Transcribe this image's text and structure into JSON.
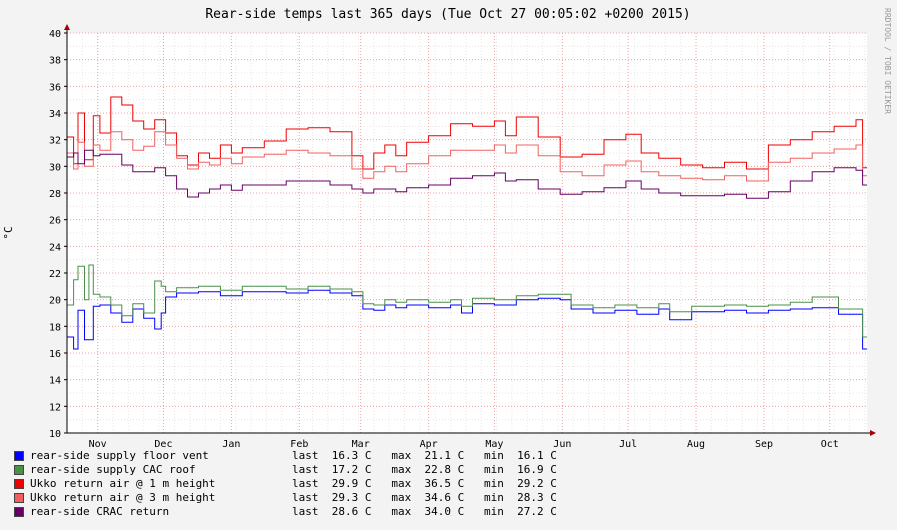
{
  "chart_data": {
    "type": "line",
    "title": "Rear-side temps last 365 days (Tue Oct 27 00:05:02 +0200 2015)",
    "ylabel": "°C",
    "watermark": "RRDTOOL / TOBI OETIKER",
    "ylim": [
      10,
      40
    ],
    "yticks": [
      "10",
      "12",
      "14",
      "16",
      "18",
      "20",
      "22",
      "24",
      "26",
      "28",
      "30",
      "32",
      "34",
      "36",
      "38",
      "40"
    ],
    "x_range_days": [
      0,
      365
    ],
    "xticks": [
      {
        "label": "Nov",
        "day": 14
      },
      {
        "label": "Dec",
        "day": 44
      },
      {
        "label": "Jan",
        "day": 75
      },
      {
        "label": "Feb",
        "day": 106
      },
      {
        "label": "Mar",
        "day": 134
      },
      {
        "label": "Apr",
        "day": 165
      },
      {
        "label": "May",
        "day": 195
      },
      {
        "label": "Jun",
        "day": 226
      },
      {
        "label": "Jul",
        "day": 256
      },
      {
        "label": "Aug",
        "day": 287
      },
      {
        "label": "Sep",
        "day": 318
      },
      {
        "label": "Oct",
        "day": 348
      }
    ],
    "grid": true,
    "series": [
      {
        "name": "rear-side supply floor vent",
        "color": "#0000FF",
        "last": "16.3",
        "max": "21.1",
        "min": "16.1",
        "points": [
          [
            0,
            17.2
          ],
          [
            3,
            16.3
          ],
          [
            5,
            19.2
          ],
          [
            8,
            17.0
          ],
          [
            12,
            19.5
          ],
          [
            15,
            19.6
          ],
          [
            20,
            19.0
          ],
          [
            25,
            18.3
          ],
          [
            30,
            19.3
          ],
          [
            35,
            18.6
          ],
          [
            40,
            17.8
          ],
          [
            43,
            19.0
          ],
          [
            45,
            20.2
          ],
          [
            50,
            20.5
          ],
          [
            60,
            20.6
          ],
          [
            70,
            20.3
          ],
          [
            80,
            20.6
          ],
          [
            90,
            20.6
          ],
          [
            100,
            20.5
          ],
          [
            110,
            20.7
          ],
          [
            120,
            20.5
          ],
          [
            130,
            20.3
          ],
          [
            135,
            19.3
          ],
          [
            140,
            19.2
          ],
          [
            145,
            19.6
          ],
          [
            150,
            19.4
          ],
          [
            155,
            19.6
          ],
          [
            165,
            19.4
          ],
          [
            175,
            19.6
          ],
          [
            180,
            19.0
          ],
          [
            185,
            19.7
          ],
          [
            195,
            19.6
          ],
          [
            205,
            20.0
          ],
          [
            215,
            20.1
          ],
          [
            225,
            20.0
          ],
          [
            230,
            19.3
          ],
          [
            240,
            19.0
          ],
          [
            250,
            19.2
          ],
          [
            260,
            18.9
          ],
          [
            270,
            19.3
          ],
          [
            275,
            18.5
          ],
          [
            285,
            19.1
          ],
          [
            300,
            19.2
          ],
          [
            310,
            19.0
          ],
          [
            320,
            19.2
          ],
          [
            330,
            19.3
          ],
          [
            340,
            19.4
          ],
          [
            352,
            18.9
          ],
          [
            360,
            18.9
          ],
          [
            363,
            16.3
          ],
          [
            365,
            16.3
          ]
        ]
      },
      {
        "name": "rear-side supply CAC roof",
        "color": "#4A8F4A",
        "last": "17.2",
        "max": "22.8",
        "min": "16.9",
        "points": [
          [
            0,
            19.6
          ],
          [
            3,
            21.5
          ],
          [
            5,
            22.5
          ],
          [
            8,
            20.0
          ],
          [
            10,
            22.6
          ],
          [
            12,
            20.4
          ],
          [
            15,
            20.2
          ],
          [
            20,
            19.6
          ],
          [
            25,
            18.8
          ],
          [
            30,
            19.7
          ],
          [
            35,
            19.0
          ],
          [
            40,
            21.4
          ],
          [
            43,
            21.0
          ],
          [
            45,
            20.6
          ],
          [
            50,
            20.9
          ],
          [
            60,
            21.0
          ],
          [
            70,
            20.7
          ],
          [
            80,
            21.0
          ],
          [
            90,
            21.0
          ],
          [
            100,
            20.8
          ],
          [
            110,
            21.0
          ],
          [
            120,
            20.8
          ],
          [
            130,
            20.6
          ],
          [
            135,
            19.7
          ],
          [
            140,
            19.6
          ],
          [
            145,
            20.0
          ],
          [
            150,
            19.8
          ],
          [
            155,
            20.0
          ],
          [
            165,
            19.8
          ],
          [
            175,
            20.0
          ],
          [
            180,
            19.5
          ],
          [
            185,
            20.1
          ],
          [
            195,
            20.0
          ],
          [
            205,
            20.3
          ],
          [
            215,
            20.4
          ],
          [
            225,
            20.4
          ],
          [
            230,
            19.6
          ],
          [
            240,
            19.4
          ],
          [
            250,
            19.6
          ],
          [
            260,
            19.4
          ],
          [
            270,
            19.7
          ],
          [
            275,
            19.1
          ],
          [
            285,
            19.5
          ],
          [
            300,
            19.6
          ],
          [
            310,
            19.5
          ],
          [
            320,
            19.6
          ],
          [
            330,
            19.8
          ],
          [
            340,
            20.2
          ],
          [
            352,
            19.3
          ],
          [
            360,
            19.3
          ],
          [
            363,
            17.2
          ],
          [
            365,
            17.2
          ]
        ]
      },
      {
        "name": "Ukko return air @ 1 m height",
        "color": "#EE0000",
        "last": "29.9",
        "max": "36.5",
        "min": "29.2",
        "points": [
          [
            0,
            32.2
          ],
          [
            3,
            30.2
          ],
          [
            5,
            34.0
          ],
          [
            8,
            30.5
          ],
          [
            12,
            33.8
          ],
          [
            15,
            32.5
          ],
          [
            20,
            35.2
          ],
          [
            25,
            34.6
          ],
          [
            30,
            33.4
          ],
          [
            35,
            32.8
          ],
          [
            40,
            33.5
          ],
          [
            45,
            32.5
          ],
          [
            50,
            30.8
          ],
          [
            55,
            30.1
          ],
          [
            60,
            31.0
          ],
          [
            65,
            30.6
          ],
          [
            70,
            31.6
          ],
          [
            75,
            31.0
          ],
          [
            80,
            31.4
          ],
          [
            90,
            31.9
          ],
          [
            100,
            32.8
          ],
          [
            110,
            32.9
          ],
          [
            120,
            32.6
          ],
          [
            130,
            30.8
          ],
          [
            135,
            29.8
          ],
          [
            140,
            31.0
          ],
          [
            145,
            31.6
          ],
          [
            150,
            30.8
          ],
          [
            155,
            31.8
          ],
          [
            165,
            32.3
          ],
          [
            175,
            33.2
          ],
          [
            185,
            33.0
          ],
          [
            195,
            33.4
          ],
          [
            200,
            32.3
          ],
          [
            205,
            33.7
          ],
          [
            215,
            32.2
          ],
          [
            225,
            30.7
          ],
          [
            235,
            30.9
          ],
          [
            245,
            32.0
          ],
          [
            255,
            32.4
          ],
          [
            262,
            31.0
          ],
          [
            270,
            30.6
          ],
          [
            280,
            30.1
          ],
          [
            290,
            29.9
          ],
          [
            300,
            30.3
          ],
          [
            310,
            29.8
          ],
          [
            320,
            31.6
          ],
          [
            330,
            32.0
          ],
          [
            340,
            32.6
          ],
          [
            350,
            33.0
          ],
          [
            360,
            33.5
          ],
          [
            363,
            29.9
          ],
          [
            365,
            29.9
          ]
        ]
      },
      {
        "name": "Ukko return air @ 3 m height",
        "color": "#F06060",
        "last": "29.3",
        "max": "34.6",
        "min": "28.3",
        "points": [
          [
            0,
            31.0
          ],
          [
            3,
            29.8
          ],
          [
            5,
            31.8
          ],
          [
            8,
            30.0
          ],
          [
            12,
            31.6
          ],
          [
            15,
            31.2
          ],
          [
            20,
            32.6
          ],
          [
            25,
            32.0
          ],
          [
            30,
            31.2
          ],
          [
            35,
            31.5
          ],
          [
            40,
            32.6
          ],
          [
            45,
            31.6
          ],
          [
            50,
            30.6
          ],
          [
            55,
            29.8
          ],
          [
            60,
            30.3
          ],
          [
            65,
            30.1
          ],
          [
            70,
            30.6
          ],
          [
            75,
            30.2
          ],
          [
            80,
            30.7
          ],
          [
            90,
            30.9
          ],
          [
            100,
            31.2
          ],
          [
            110,
            31.0
          ],
          [
            120,
            30.8
          ],
          [
            130,
            29.8
          ],
          [
            135,
            29.1
          ],
          [
            140,
            29.6
          ],
          [
            145,
            30.0
          ],
          [
            150,
            29.6
          ],
          [
            155,
            30.2
          ],
          [
            165,
            30.8
          ],
          [
            175,
            31.2
          ],
          [
            185,
            31.2
          ],
          [
            195,
            31.6
          ],
          [
            200,
            31.0
          ],
          [
            205,
            31.6
          ],
          [
            215,
            30.8
          ],
          [
            225,
            29.6
          ],
          [
            235,
            29.3
          ],
          [
            245,
            30.1
          ],
          [
            255,
            30.4
          ],
          [
            262,
            29.6
          ],
          [
            270,
            29.3
          ],
          [
            280,
            29.1
          ],
          [
            290,
            29.0
          ],
          [
            300,
            29.3
          ],
          [
            310,
            28.9
          ],
          [
            320,
            30.3
          ],
          [
            330,
            30.6
          ],
          [
            340,
            31.0
          ],
          [
            350,
            31.3
          ],
          [
            360,
            31.6
          ],
          [
            363,
            29.3
          ],
          [
            365,
            29.3
          ]
        ]
      },
      {
        "name": "rear-side CRAC return",
        "color": "#660066",
        "last": "28.6",
        "max": "34.0",
        "min": "27.2",
        "points": [
          [
            0,
            30.7
          ],
          [
            3,
            31.0
          ],
          [
            5,
            30.2
          ],
          [
            8,
            31.2
          ],
          [
            12,
            30.8
          ],
          [
            15,
            30.9
          ],
          [
            20,
            30.9
          ],
          [
            25,
            30.1
          ],
          [
            30,
            29.6
          ],
          [
            35,
            29.6
          ],
          [
            40,
            29.9
          ],
          [
            45,
            29.3
          ],
          [
            50,
            28.3
          ],
          [
            55,
            27.7
          ],
          [
            60,
            28.0
          ],
          [
            65,
            28.3
          ],
          [
            70,
            28.6
          ],
          [
            75,
            28.2
          ],
          [
            80,
            28.6
          ],
          [
            90,
            28.6
          ],
          [
            100,
            28.9
          ],
          [
            110,
            28.9
          ],
          [
            120,
            28.6
          ],
          [
            130,
            28.3
          ],
          [
            135,
            28.0
          ],
          [
            140,
            28.3
          ],
          [
            145,
            28.3
          ],
          [
            150,
            28.1
          ],
          [
            155,
            28.4
          ],
          [
            165,
            28.6
          ],
          [
            175,
            29.1
          ],
          [
            185,
            29.3
          ],
          [
            195,
            29.5
          ],
          [
            200,
            28.9
          ],
          [
            205,
            29.0
          ],
          [
            215,
            28.3
          ],
          [
            225,
            27.9
          ],
          [
            235,
            28.1
          ],
          [
            245,
            28.4
          ],
          [
            255,
            28.9
          ],
          [
            262,
            28.3
          ],
          [
            270,
            28.0
          ],
          [
            280,
            27.8
          ],
          [
            290,
            27.8
          ],
          [
            300,
            27.9
          ],
          [
            310,
            27.6
          ],
          [
            320,
            28.1
          ],
          [
            330,
            28.9
          ],
          [
            340,
            29.6
          ],
          [
            350,
            29.9
          ],
          [
            360,
            29.7
          ],
          [
            363,
            28.6
          ],
          [
            365,
            28.6
          ]
        ]
      }
    ]
  },
  "legend": [
    {
      "name": "rear-side supply floor vent",
      "color": "#0000FF",
      "stats": "last  16.3 C   max  21.1 C   min  16.1 C"
    },
    {
      "name": "rear-side supply CAC roof",
      "color": "#4A8F4A",
      "stats": "last  17.2 C   max  22.8 C   min  16.9 C"
    },
    {
      "name": "Ukko return air @ 1 m height",
      "color": "#EE0000",
      "stats": "last  29.9 C   max  36.5 C   min  29.2 C"
    },
    {
      "name": "Ukko return air @ 3 m height",
      "color": "#F06060",
      "stats": "last  29.3 C   max  34.6 C   min  28.3 C"
    },
    {
      "name": "rear-side CRAC return",
      "color": "#660066",
      "stats": "last  28.6 C   max  34.0 C   min  27.2 C"
    }
  ]
}
